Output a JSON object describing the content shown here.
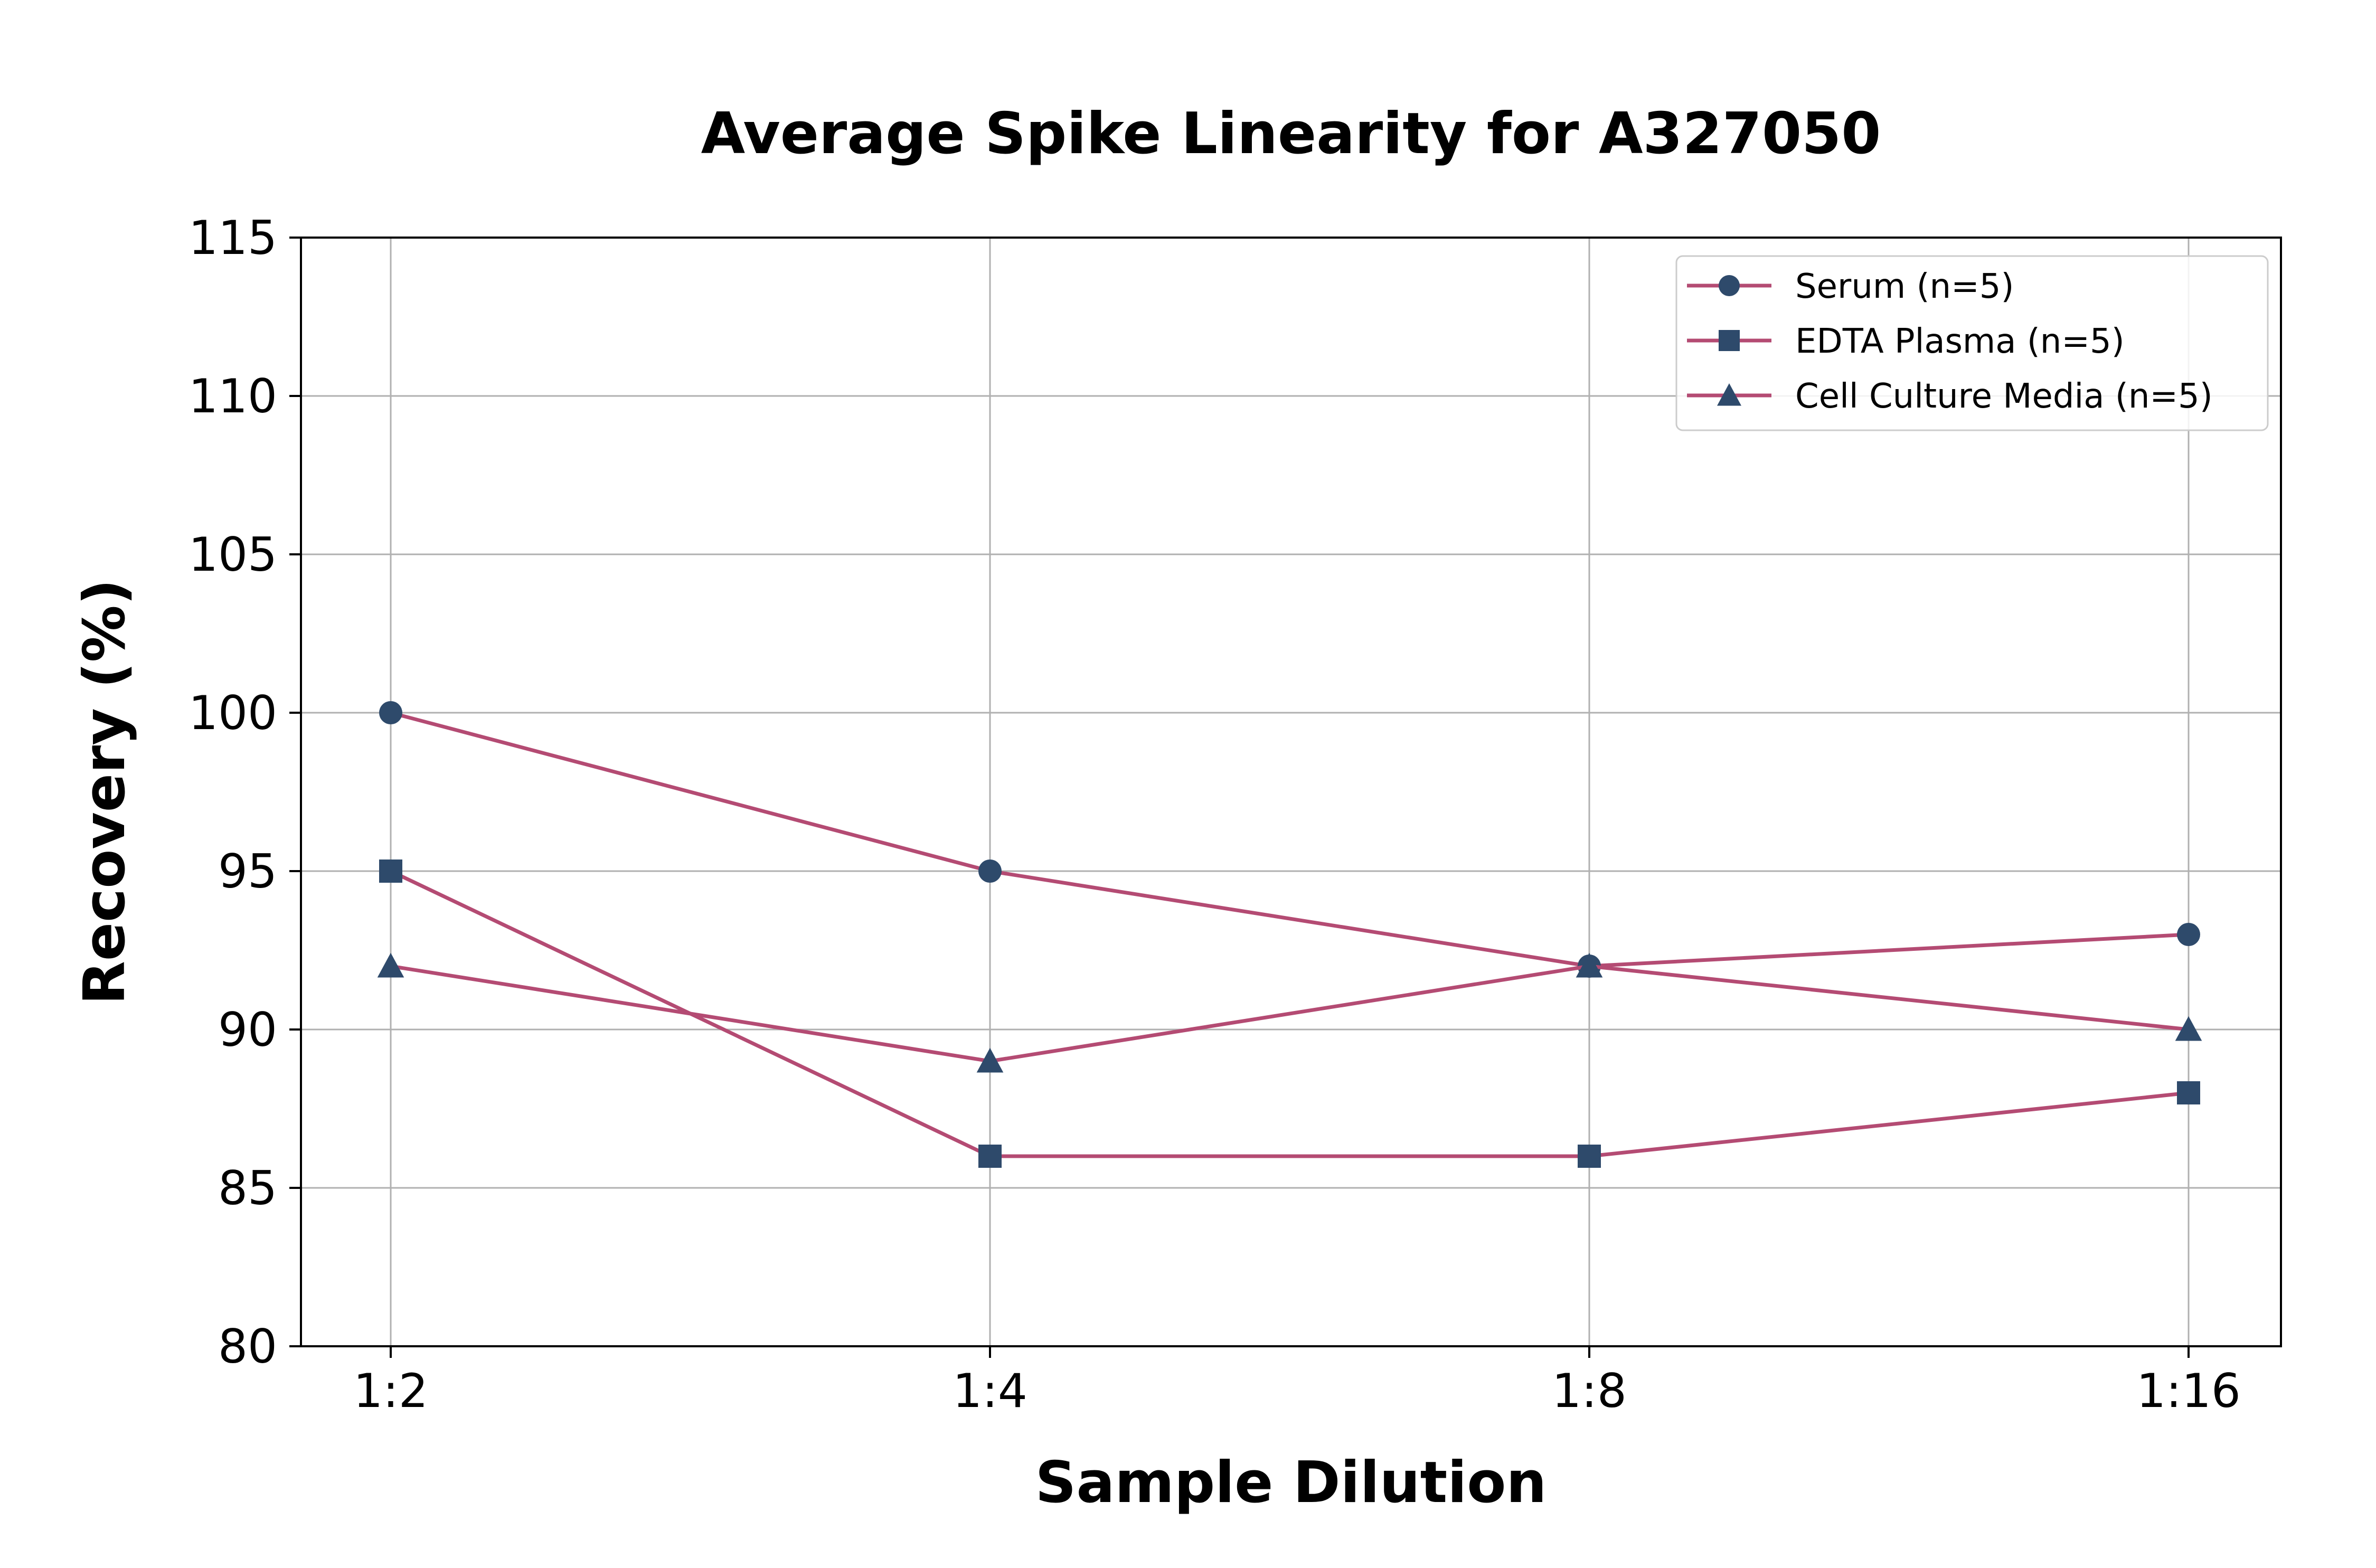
{
  "chart_data": {
    "type": "line",
    "title": "Average Spike Linearity for A327050",
    "xlabel": "Sample Dilution",
    "ylabel": "Recovery (%)",
    "categories": [
      "1:2",
      "1:4",
      "1:8",
      "1:16"
    ],
    "ylim": [
      80,
      115
    ],
    "yticks": [
      80,
      85,
      90,
      95,
      100,
      105,
      110,
      115
    ],
    "grid": true,
    "legend_position": "top-right",
    "line_color": "#b44b73",
    "marker_color": "#2e4a6b",
    "series": [
      {
        "name": "Serum (n=5)",
        "marker": "circle",
        "values": [
          100,
          95,
          92,
          93
        ]
      },
      {
        "name": "EDTA Plasma (n=5)",
        "marker": "square",
        "values": [
          95,
          86,
          86,
          88
        ]
      },
      {
        "name": "Cell Culture Media (n=5)",
        "marker": "triangle",
        "values": [
          92,
          89,
          92,
          90
        ]
      }
    ]
  }
}
